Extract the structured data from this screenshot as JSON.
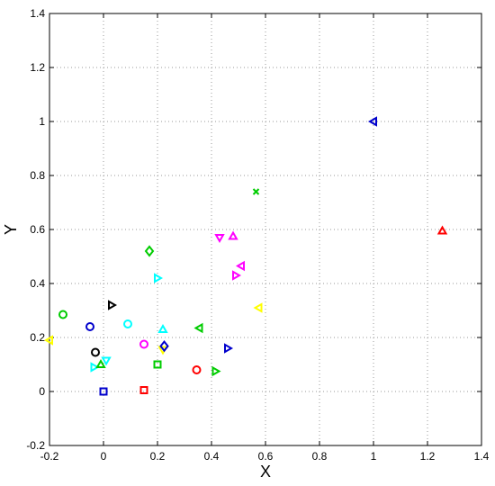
{
  "chart_data": {
    "type": "scatter",
    "xlabel": "X",
    "ylabel": "Y",
    "xlim": [
      -0.2,
      1.4
    ],
    "ylim": [
      -0.2,
      1.4
    ],
    "xticks": [
      "-0.2",
      "0",
      "0.2",
      "0.4",
      "0.6",
      "0.8",
      "1",
      "1.2",
      "1.4"
    ],
    "yticks": [
      "-0.2",
      "0",
      "0.2",
      "0.4",
      "0.6",
      "0.8",
      "1",
      "1.2",
      "1.4"
    ],
    "grid": true,
    "points": [
      {
        "x": -0.2,
        "y": 0.19,
        "marker": "triangle-left",
        "color": "#ffff00"
      },
      {
        "x": -0.15,
        "y": 0.285,
        "marker": "circle",
        "color": "#00cc00"
      },
      {
        "x": -0.05,
        "y": 0.24,
        "marker": "circle",
        "color": "#0000cc"
      },
      {
        "x": -0.03,
        "y": 0.145,
        "marker": "circle",
        "color": "#000000"
      },
      {
        "x": -0.035,
        "y": 0.09,
        "marker": "triangle-right",
        "color": "#00ffff"
      },
      {
        "x": -0.01,
        "y": 0.1,
        "marker": "triangle-up",
        "color": "#00cc00"
      },
      {
        "x": 0.01,
        "y": 0.115,
        "marker": "triangle-down",
        "color": "#00ffff"
      },
      {
        "x": 0.0,
        "y": 0.0,
        "marker": "square",
        "color": "#0000cc"
      },
      {
        "x": 0.03,
        "y": 0.32,
        "marker": "triangle-right",
        "color": "#000000"
      },
      {
        "x": 0.09,
        "y": 0.25,
        "marker": "circle",
        "color": "#00ffff"
      },
      {
        "x": 0.15,
        "y": 0.175,
        "marker": "circle",
        "color": "#ff00ff"
      },
      {
        "x": 0.15,
        "y": 0.005,
        "marker": "square",
        "color": "#ff0000"
      },
      {
        "x": 0.17,
        "y": 0.52,
        "marker": "diamond",
        "color": "#00cc00"
      },
      {
        "x": 0.2,
        "y": 0.42,
        "marker": "triangle-right",
        "color": "#00ffff"
      },
      {
        "x": 0.2,
        "y": 0.1,
        "marker": "square",
        "color": "#00cc00"
      },
      {
        "x": 0.22,
        "y": 0.23,
        "marker": "triangle-up",
        "color": "#00ffff"
      },
      {
        "x": 0.22,
        "y": 0.155,
        "marker": "triangle-down",
        "color": "#ffff00"
      },
      {
        "x": 0.225,
        "y": 0.168,
        "marker": "diamond",
        "color": "#0000cc"
      },
      {
        "x": 0.345,
        "y": 0.08,
        "marker": "circle",
        "color": "#ff0000"
      },
      {
        "x": 0.355,
        "y": 0.235,
        "marker": "triangle-left",
        "color": "#00cc00"
      },
      {
        "x": 0.415,
        "y": 0.075,
        "marker": "triangle-right",
        "color": "#00cc00"
      },
      {
        "x": 0.43,
        "y": 0.57,
        "marker": "triangle-down",
        "color": "#ff00ff"
      },
      {
        "x": 0.46,
        "y": 0.16,
        "marker": "triangle-right",
        "color": "#0000cc"
      },
      {
        "x": 0.48,
        "y": 0.575,
        "marker": "triangle-up",
        "color": "#ff00ff"
      },
      {
        "x": 0.49,
        "y": 0.43,
        "marker": "triangle-right",
        "color": "#ff00ff"
      },
      {
        "x": 0.51,
        "y": 0.465,
        "marker": "triangle-left",
        "color": "#ff00ff"
      },
      {
        "x": 0.565,
        "y": 0.74,
        "marker": "x",
        "color": "#00cc00"
      },
      {
        "x": 0.575,
        "y": 0.31,
        "marker": "triangle-left",
        "color": "#ffff00"
      },
      {
        "x": 1.0,
        "y": 1.0,
        "marker": "triangle-left",
        "color": "#0000cc"
      },
      {
        "x": 1.255,
        "y": 0.595,
        "marker": "triangle-up",
        "color": "#ff0000"
      }
    ]
  }
}
